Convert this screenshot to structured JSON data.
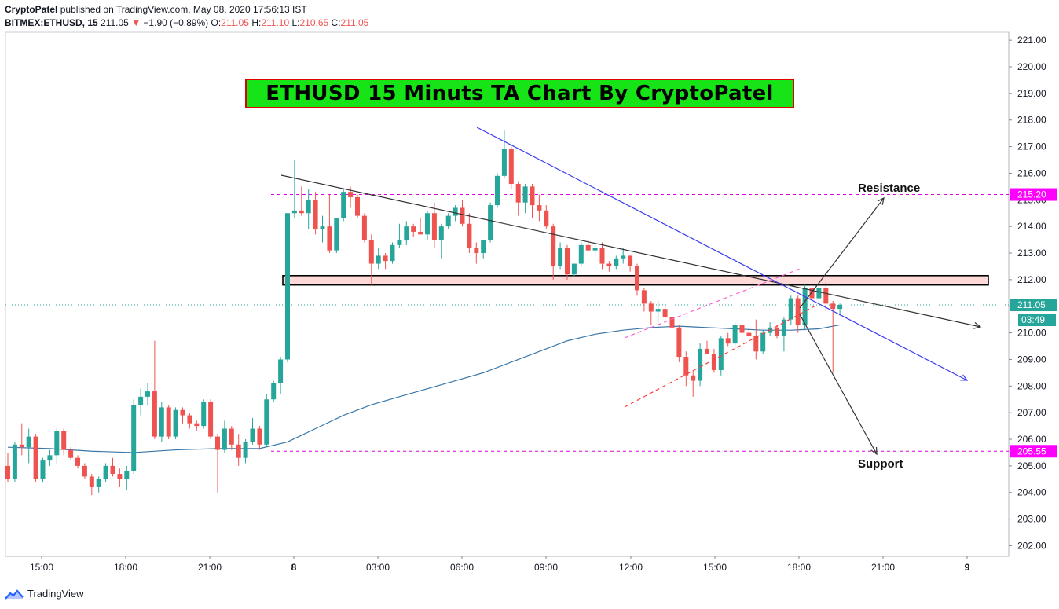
{
  "header": {
    "author": "CryptoPatel",
    "published": "published on TradingView.com, May 08, 2020 17:56:13 IST",
    "symbol": "BITMEX:ETHUSD, 15",
    "last": "211.05",
    "change_arrow": "▼",
    "change": "−1.90 (−0.89%)",
    "o_label": "O:",
    "o": "211.05",
    "h_label": "H:",
    "h": "211.10",
    "l_label": "L:",
    "l": "210.65",
    "c_label": "C:",
    "c": "211.05"
  },
  "overlay_title": "ETHUSD 15 Minuts TA Chart By CryptoPatel",
  "annotations": {
    "resistance": "Resistance",
    "support": "Support"
  },
  "price_tags": {
    "resistance": "215.20",
    "support": "205.55",
    "last": "211.05",
    "countdown": "03:49"
  },
  "footer": {
    "brand": "TradingView",
    "logo_icon": "tradingview-logo-icon"
  },
  "colors": {
    "up": "#26a69a",
    "down": "#ef5350",
    "ma": "#3a77a8",
    "level": "#e000e0",
    "tag": "#ff00ff",
    "blue_line": "#3b3bf0",
    "black_line": "#333333",
    "zone_fill": "#ffd8d8",
    "channel": "#ff3b3b",
    "title_bg": "#17e417",
    "title_border": "#e00000"
  },
  "chart_data": {
    "type": "candlestick",
    "symbol": "BITMEX:ETHUSD",
    "interval": "15",
    "ylim": [
      201.6,
      221.3
    ],
    "y_ticks": [
      "202.00",
      "203.00",
      "204.00",
      "205.00",
      "206.00",
      "207.00",
      "208.00",
      "209.00",
      "210.00",
      "211.00",
      "212.00",
      "213.00",
      "214.00",
      "215.00",
      "216.00",
      "217.00",
      "218.00",
      "219.00",
      "220.00",
      "221.00"
    ],
    "x_ticks": [
      "15:00",
      "18:00",
      "21:00",
      "8",
      "03:00",
      "06:00",
      "09:00",
      "12:00",
      "15:00",
      "18:00",
      "21:00",
      "9"
    ],
    "candles": [
      [
        205.0,
        205.5,
        204.4,
        204.5
      ],
      [
        204.5,
        205.9,
        204.4,
        205.8
      ],
      [
        205.8,
        206.6,
        205.4,
        205.7
      ],
      [
        205.7,
        206.4,
        205.1,
        206.1
      ],
      [
        206.1,
        206.2,
        204.4,
        204.5
      ],
      [
        204.5,
        205.3,
        204.4,
        205.2
      ],
      [
        205.2,
        205.6,
        205.0,
        205.4
      ],
      [
        205.4,
        206.4,
        205.1,
        206.3
      ],
      [
        206.3,
        206.4,
        205.4,
        205.6
      ],
      [
        205.6,
        205.7,
        205.2,
        205.3
      ],
      [
        205.3,
        205.4,
        204.9,
        205.0
      ],
      [
        205.0,
        205.1,
        204.5,
        204.6
      ],
      [
        204.6,
        204.7,
        203.9,
        204.2
      ],
      [
        204.2,
        204.6,
        204.0,
        204.5
      ],
      [
        204.5,
        205.1,
        204.4,
        205.0
      ],
      [
        205.0,
        205.3,
        204.6,
        204.7
      ],
      [
        204.7,
        204.9,
        204.2,
        204.5
      ],
      [
        204.5,
        205.0,
        204.1,
        204.8
      ],
      [
        204.8,
        207.5,
        204.7,
        207.3
      ],
      [
        207.3,
        207.9,
        206.9,
        207.6
      ],
      [
        207.6,
        208.1,
        207.3,
        207.8
      ],
      [
        207.8,
        209.7,
        206.0,
        206.1
      ],
      [
        206.1,
        207.4,
        205.9,
        207.2
      ],
      [
        207.2,
        207.3,
        206.0,
        206.1
      ],
      [
        206.1,
        207.2,
        206.0,
        207.1
      ],
      [
        207.1,
        207.2,
        206.6,
        206.9
      ],
      [
        206.9,
        207.0,
        206.4,
        206.6
      ],
      [
        206.6,
        206.7,
        206.3,
        206.5
      ],
      [
        206.5,
        207.5,
        206.4,
        207.4
      ],
      [
        207.4,
        207.5,
        206.0,
        206.1
      ],
      [
        206.1,
        206.2,
        204.0,
        205.6
      ],
      [
        205.6,
        206.7,
        205.5,
        206.4
      ],
      [
        206.4,
        206.5,
        205.6,
        205.8
      ],
      [
        205.8,
        206.2,
        205.0,
        205.3
      ],
      [
        205.3,
        206.0,
        205.1,
        205.9
      ],
      [
        205.9,
        206.8,
        205.8,
        206.4
      ],
      [
        206.4,
        206.5,
        205.6,
        205.8
      ],
      [
        205.8,
        207.7,
        205.7,
        207.5
      ],
      [
        207.5,
        208.2,
        207.4,
        208.1
      ],
      [
        208.1,
        209.1,
        207.7,
        209.0
      ],
      [
        209.0,
        214.5,
        208.9,
        214.5
      ],
      [
        214.5,
        216.5,
        214.3,
        214.6
      ],
      [
        214.6,
        215.5,
        214.4,
        214.5
      ],
      [
        214.5,
        215.4,
        213.9,
        215.0
      ],
      [
        215.0,
        215.3,
        213.7,
        213.9
      ],
      [
        213.9,
        214.4,
        213.4,
        214.0
      ],
      [
        214.0,
        215.2,
        213.0,
        213.1
      ],
      [
        213.1,
        214.3,
        213.0,
        214.3
      ],
      [
        214.3,
        215.4,
        214.2,
        215.3
      ],
      [
        215.3,
        215.5,
        214.7,
        215.1
      ],
      [
        215.1,
        215.2,
        214.3,
        214.4
      ],
      [
        214.4,
        214.5,
        213.4,
        213.5
      ],
      [
        213.5,
        213.7,
        211.8,
        212.6
      ],
      [
        212.6,
        213.2,
        212.4,
        212.9
      ],
      [
        212.9,
        213.0,
        212.4,
        212.7
      ],
      [
        212.7,
        213.4,
        212.6,
        213.3
      ],
      [
        213.3,
        214.1,
        213.2,
        213.5
      ],
      [
        213.5,
        214.2,
        213.3,
        214.0
      ],
      [
        214.0,
        214.1,
        213.6,
        213.8
      ],
      [
        213.8,
        214.3,
        213.7,
        213.7
      ],
      [
        213.7,
        214.6,
        213.5,
        214.5
      ],
      [
        214.5,
        214.9,
        213.2,
        213.5
      ],
      [
        213.5,
        214.1,
        212.8,
        214.0
      ],
      [
        214.0,
        214.5,
        213.9,
        214.4
      ],
      [
        214.4,
        214.8,
        214.2,
        214.7
      ],
      [
        214.7,
        215.0,
        214.0,
        214.1
      ],
      [
        214.1,
        214.5,
        213.0,
        213.2
      ],
      [
        213.2,
        213.4,
        212.6,
        213.0
      ],
      [
        213.0,
        213.5,
        212.8,
        213.5
      ],
      [
        213.5,
        214.9,
        213.4,
        214.8
      ],
      [
        214.8,
        216.0,
        214.7,
        215.9
      ],
      [
        215.9,
        217.6,
        215.8,
        216.9
      ],
      [
        216.9,
        217.0,
        215.4,
        215.6
      ],
      [
        215.6,
        215.7,
        214.4,
        214.9
      ],
      [
        214.9,
        215.6,
        214.5,
        215.5
      ],
      [
        215.5,
        215.6,
        214.3,
        214.8
      ],
      [
        214.8,
        215.2,
        214.2,
        214.6
      ],
      [
        214.6,
        214.8,
        213.9,
        214.0
      ],
      [
        214.0,
        214.1,
        212.0,
        212.5
      ],
      [
        212.5,
        213.4,
        212.4,
        213.2
      ],
      [
        213.2,
        213.3,
        212.0,
        212.2
      ],
      [
        212.2,
        212.6,
        212.1,
        212.6
      ],
      [
        212.6,
        213.4,
        212.5,
        213.3
      ],
      [
        213.3,
        213.5,
        213.1,
        213.1
      ],
      [
        213.1,
        213.3,
        212.9,
        213.2
      ],
      [
        213.2,
        213.4,
        212.4,
        212.6
      ],
      [
        212.6,
        212.7,
        212.3,
        212.5
      ],
      [
        212.5,
        212.9,
        212.4,
        212.8
      ],
      [
        212.8,
        213.2,
        212.6,
        212.9
      ],
      [
        212.9,
        212.9,
        212.3,
        212.5
      ],
      [
        212.5,
        212.6,
        211.4,
        211.6
      ],
      [
        211.6,
        211.7,
        210.8,
        211.1
      ],
      [
        211.1,
        211.2,
        210.3,
        210.8
      ],
      [
        210.8,
        211.2,
        210.4,
        210.9
      ],
      [
        210.9,
        211.0,
        210.5,
        210.6
      ],
      [
        210.6,
        210.7,
        210.0,
        210.2
      ],
      [
        210.2,
        210.3,
        208.9,
        209.1
      ],
      [
        209.1,
        209.3,
        208.0,
        208.4
      ],
      [
        208.4,
        208.6,
        207.6,
        208.2
      ],
      [
        208.2,
        209.6,
        208.0,
        209.4
      ],
      [
        209.4,
        209.7,
        209.2,
        209.2
      ],
      [
        209.2,
        209.4,
        208.5,
        208.6
      ],
      [
        208.6,
        209.9,
        208.4,
        209.8
      ],
      [
        209.8,
        210.0,
        209.5,
        209.6
      ],
      [
        209.6,
        210.4,
        209.4,
        210.3
      ],
      [
        210.3,
        210.7,
        209.9,
        210.0
      ],
      [
        210.0,
        210.2,
        209.8,
        209.9
      ],
      [
        209.9,
        210.5,
        209.0,
        209.3
      ],
      [
        209.3,
        210.1,
        209.2,
        210.0
      ],
      [
        210.0,
        210.4,
        209.9,
        210.2
      ],
      [
        210.2,
        210.3,
        209.8,
        209.9
      ],
      [
        209.9,
        210.6,
        209.3,
        210.5
      ],
      [
        210.5,
        211.4,
        210.3,
        211.3
      ],
      [
        211.3,
        211.4,
        210.0,
        210.3
      ],
      [
        210.3,
        211.8,
        210.1,
        211.7
      ],
      [
        211.7,
        212.0,
        211.2,
        211.3
      ],
      [
        211.3,
        211.8,
        211.1,
        211.7
      ],
      [
        211.7,
        211.9,
        210.8,
        211.1
      ],
      [
        211.1,
        211.2,
        208.5,
        210.9
      ],
      [
        210.9,
        211.1,
        210.65,
        211.05
      ]
    ],
    "moving_average": [
      [
        0,
        205.7
      ],
      [
        6,
        205.65
      ],
      [
        12,
        205.55
      ],
      [
        18,
        205.5
      ],
      [
        24,
        205.6
      ],
      [
        30,
        205.65
      ],
      [
        36,
        205.65
      ],
      [
        40,
        205.9
      ],
      [
        44,
        206.4
      ],
      [
        48,
        206.9
      ],
      [
        52,
        207.3
      ],
      [
        56,
        207.6
      ],
      [
        60,
        207.9
      ],
      [
        64,
        208.2
      ],
      [
        68,
        208.5
      ],
      [
        72,
        208.9
      ],
      [
        76,
        209.3
      ],
      [
        80,
        209.7
      ],
      [
        84,
        209.95
      ],
      [
        88,
        210.1
      ],
      [
        92,
        210.2
      ],
      [
        96,
        210.25
      ],
      [
        100,
        210.2
      ],
      [
        104,
        210.15
      ],
      [
        108,
        210.1
      ],
      [
        112,
        210.1
      ],
      [
        116,
        210.15
      ],
      [
        119,
        210.3
      ]
    ],
    "levels": [
      {
        "label": "215.20",
        "price": 215.2,
        "name": "Resistance"
      },
      {
        "label": "205.55",
        "price": 205.55,
        "name": "Support"
      }
    ],
    "last_price": 211.05,
    "zone": [
      211.8,
      212.15
    ]
  }
}
